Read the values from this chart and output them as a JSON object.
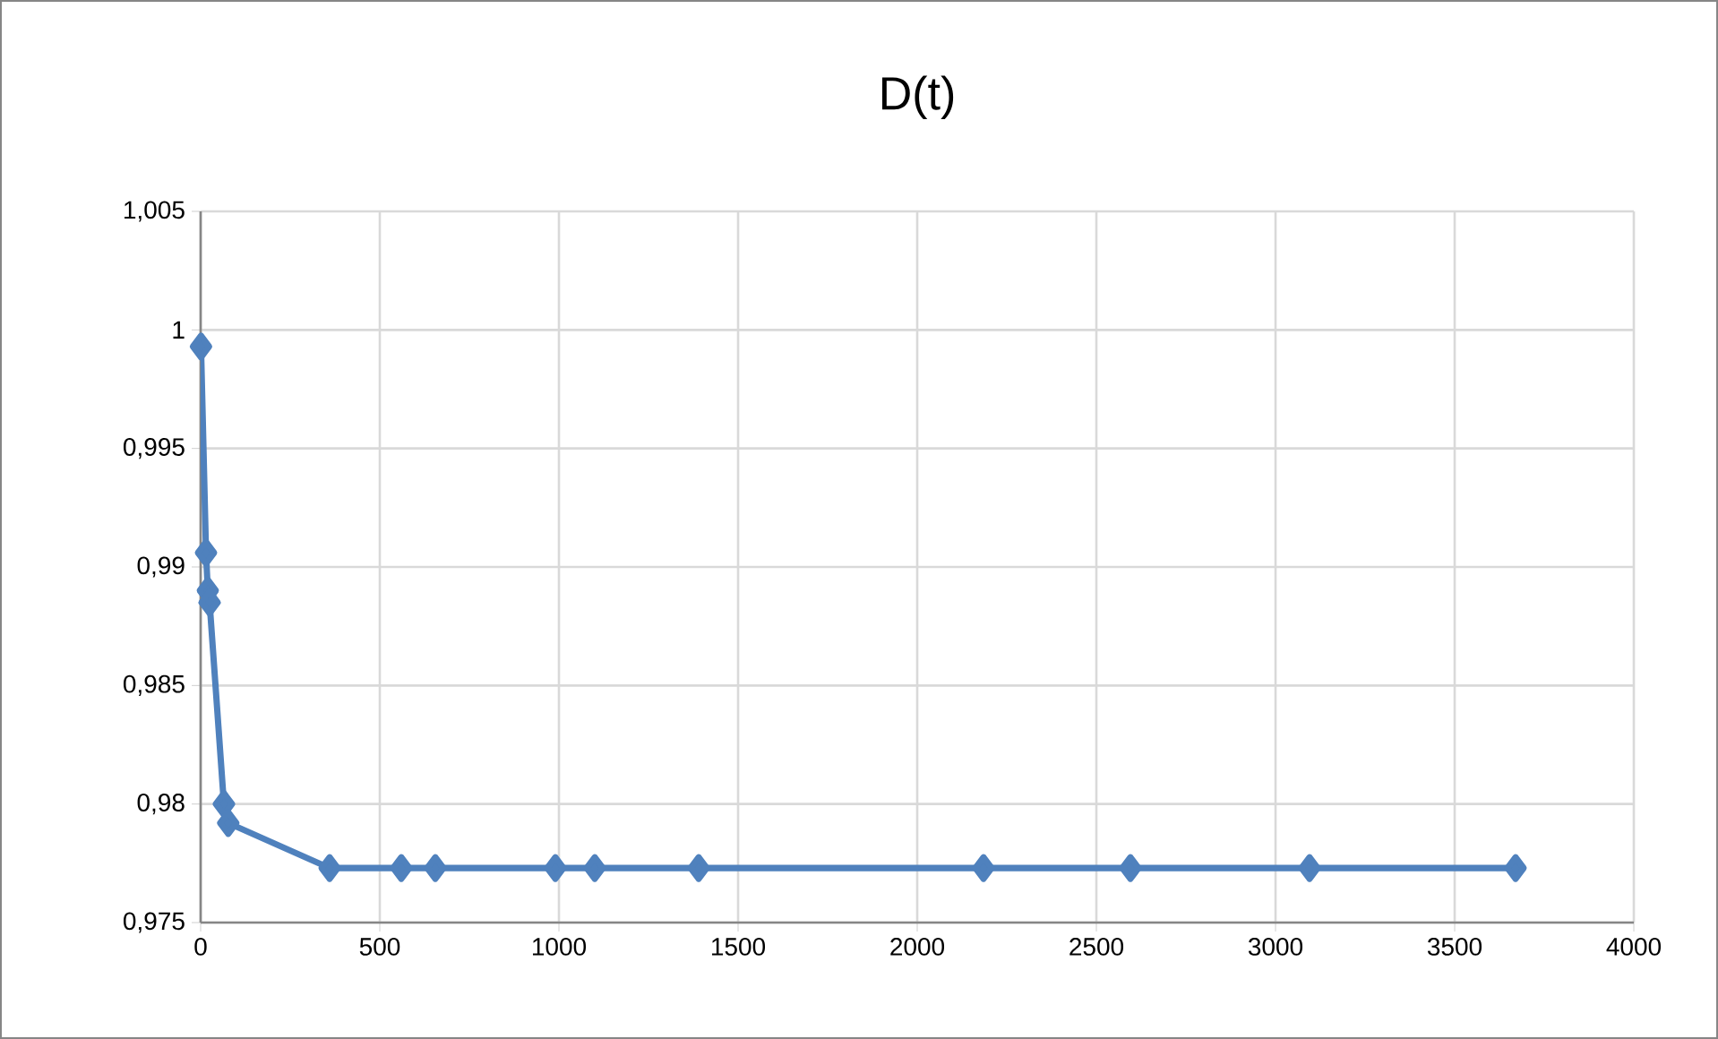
{
  "chart_data": {
    "type": "line",
    "title": "D(t)",
    "x": [
      1,
      15,
      20,
      25,
      65,
      77,
      360,
      560,
      655,
      990,
      1100,
      1390,
      2185,
      2595,
      3095,
      3670
    ],
    "series": [
      {
        "color": "#4f81bd",
        "values": [
          0.9993,
          0.9906,
          0.989,
          0.9885,
          0.98,
          0.9792,
          0.9773,
          0.9773,
          0.9773,
          0.9773,
          0.9773,
          0.9773,
          0.9773,
          0.9773,
          0.9773,
          0.9773
        ]
      }
    ],
    "xlim": [
      0,
      4000
    ],
    "xticks": [
      0,
      500,
      1000,
      1500,
      2000,
      2500,
      3000,
      3500,
      4000
    ],
    "ylim": [
      0.975,
      1.005
    ],
    "yticks": [
      {
        "value": 0.975,
        "label": "0,975"
      },
      {
        "value": 0.98,
        "label": "0,98"
      },
      {
        "value": 0.985,
        "label": "0,985"
      },
      {
        "value": 0.99,
        "label": "0,99"
      },
      {
        "value": 0.995,
        "label": "0,995"
      },
      {
        "value": 1,
        "label": "1"
      },
      {
        "value": 1.005,
        "label": "1,005"
      }
    ],
    "grid": true,
    "marker": "diamond",
    "line_style": "solid"
  }
}
